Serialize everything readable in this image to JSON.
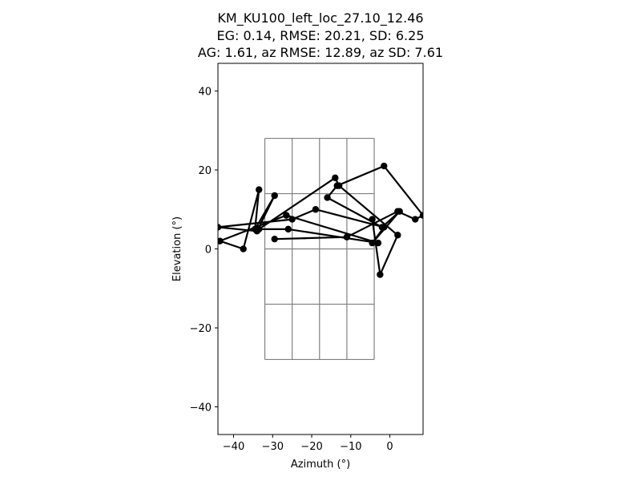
{
  "chart_data": {
    "type": "line",
    "title_lines": [
      "KM_KU100_left_loc_27.10_12.46",
      "EG: 0.14, RMSE: 20.21, SD: 6.25",
      "AG: 1.61, az RMSE: 12.89, az SD: 7.61"
    ],
    "xlabel": "Azimuth (°)",
    "ylabel": "Elevation (°)",
    "xlim": [
      -44,
      8.5
    ],
    "ylim": [
      -47,
      47
    ],
    "xticks": [
      -40,
      -30,
      -20,
      -10,
      0
    ],
    "yticks": [
      -40,
      -20,
      0,
      20,
      40
    ],
    "xtick_labels": [
      "−40",
      "−30",
      "−20",
      "−10",
      "0"
    ],
    "ytick_labels": [
      "−40",
      "−20",
      "0",
      "20",
      "40"
    ],
    "grid_outline": {
      "x": [
        -32,
        -25,
        -18,
        -11,
        -4
      ],
      "y": [
        -28,
        -14,
        0,
        14,
        28
      ]
    },
    "series": [
      {
        "marker_color": "#000000",
        "line_color": "#000000",
        "x": [
          -29.5,
          -11,
          2,
          6.5,
          8.5,
          -1.5,
          -13.5,
          -16,
          -2,
          2.5,
          -4.5,
          -1.5,
          -19,
          -25,
          -44,
          -34,
          -29.5,
          -34.5,
          -33.5,
          -37.5,
          -43.5,
          -26.5,
          -3,
          -26,
          -33.5,
          -14,
          -13,
          2,
          -2.5,
          -4.5
        ],
        "y": [
          2.5,
          3,
          9.5,
          7.5,
          8.5,
          21,
          16,
          13,
          5.5,
          9.5,
          1.5,
          5.5,
          10,
          7.5,
          5.5,
          4.5,
          13.5,
          5,
          15,
          0,
          2,
          8.5,
          1.5,
          5,
          5,
          18,
          16,
          3.5,
          -6.5,
          7.5
        ]
      }
    ]
  }
}
